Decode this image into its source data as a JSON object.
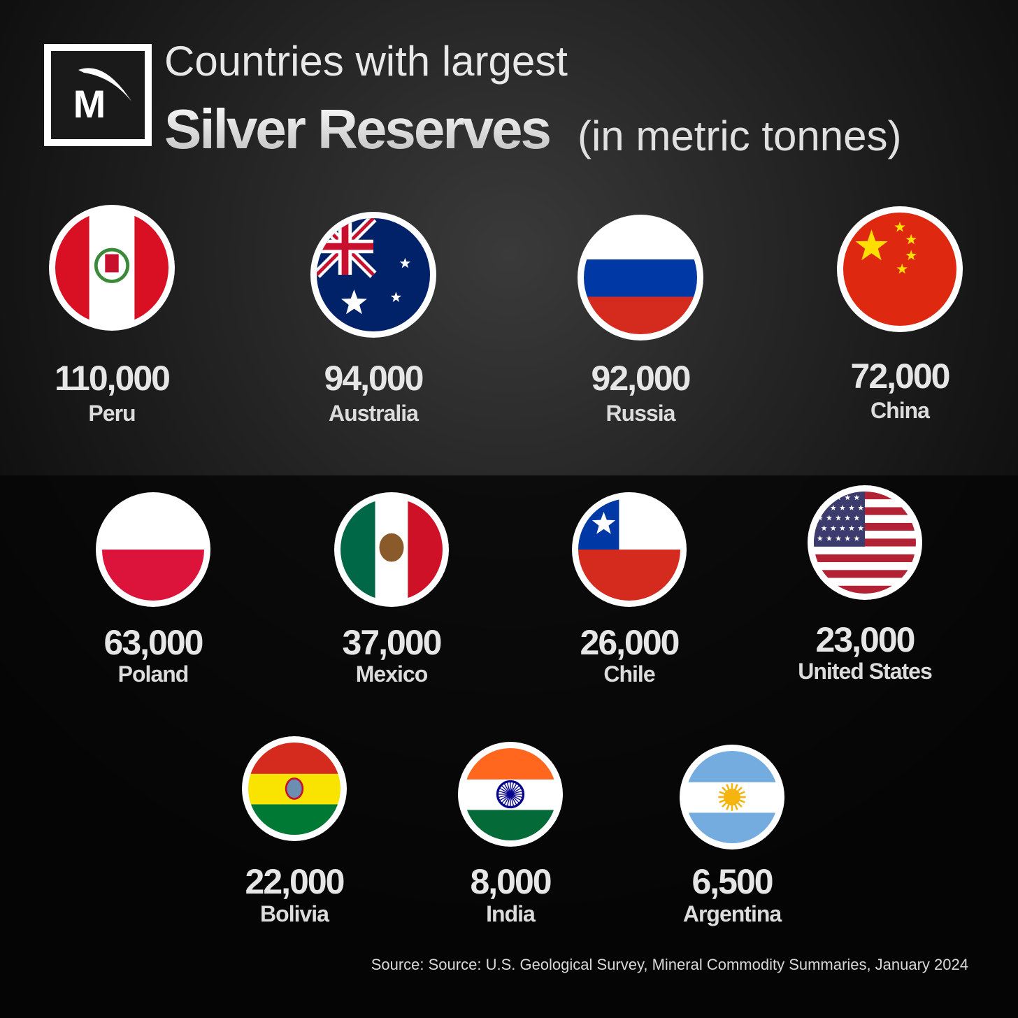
{
  "header": {
    "line1": "Countries with largest",
    "title": "Silver Reserves",
    "subtitle": "(in metric tonnes)"
  },
  "logo": "M",
  "items": [
    {
      "value": "110,000",
      "country": "Peru"
    },
    {
      "value": "94,000",
      "country": "Australia"
    },
    {
      "value": "92,000",
      "country": "Russia"
    },
    {
      "value": "72,000",
      "country": "China"
    },
    {
      "value": "63,000",
      "country": "Poland"
    },
    {
      "value": "37,000",
      "country": "Mexico"
    },
    {
      "value": "26,000",
      "country": "Chile"
    },
    {
      "value": "23,000",
      "country": "United States"
    },
    {
      "value": "22,000",
      "country": "Bolivia"
    },
    {
      "value": "8,000",
      "country": "India"
    },
    {
      "value": "6,500",
      "country": "Argentina"
    }
  ],
  "source": "Source: Source: U.S. Geological Survey, Mineral Commodity Summaries, January 2024"
}
